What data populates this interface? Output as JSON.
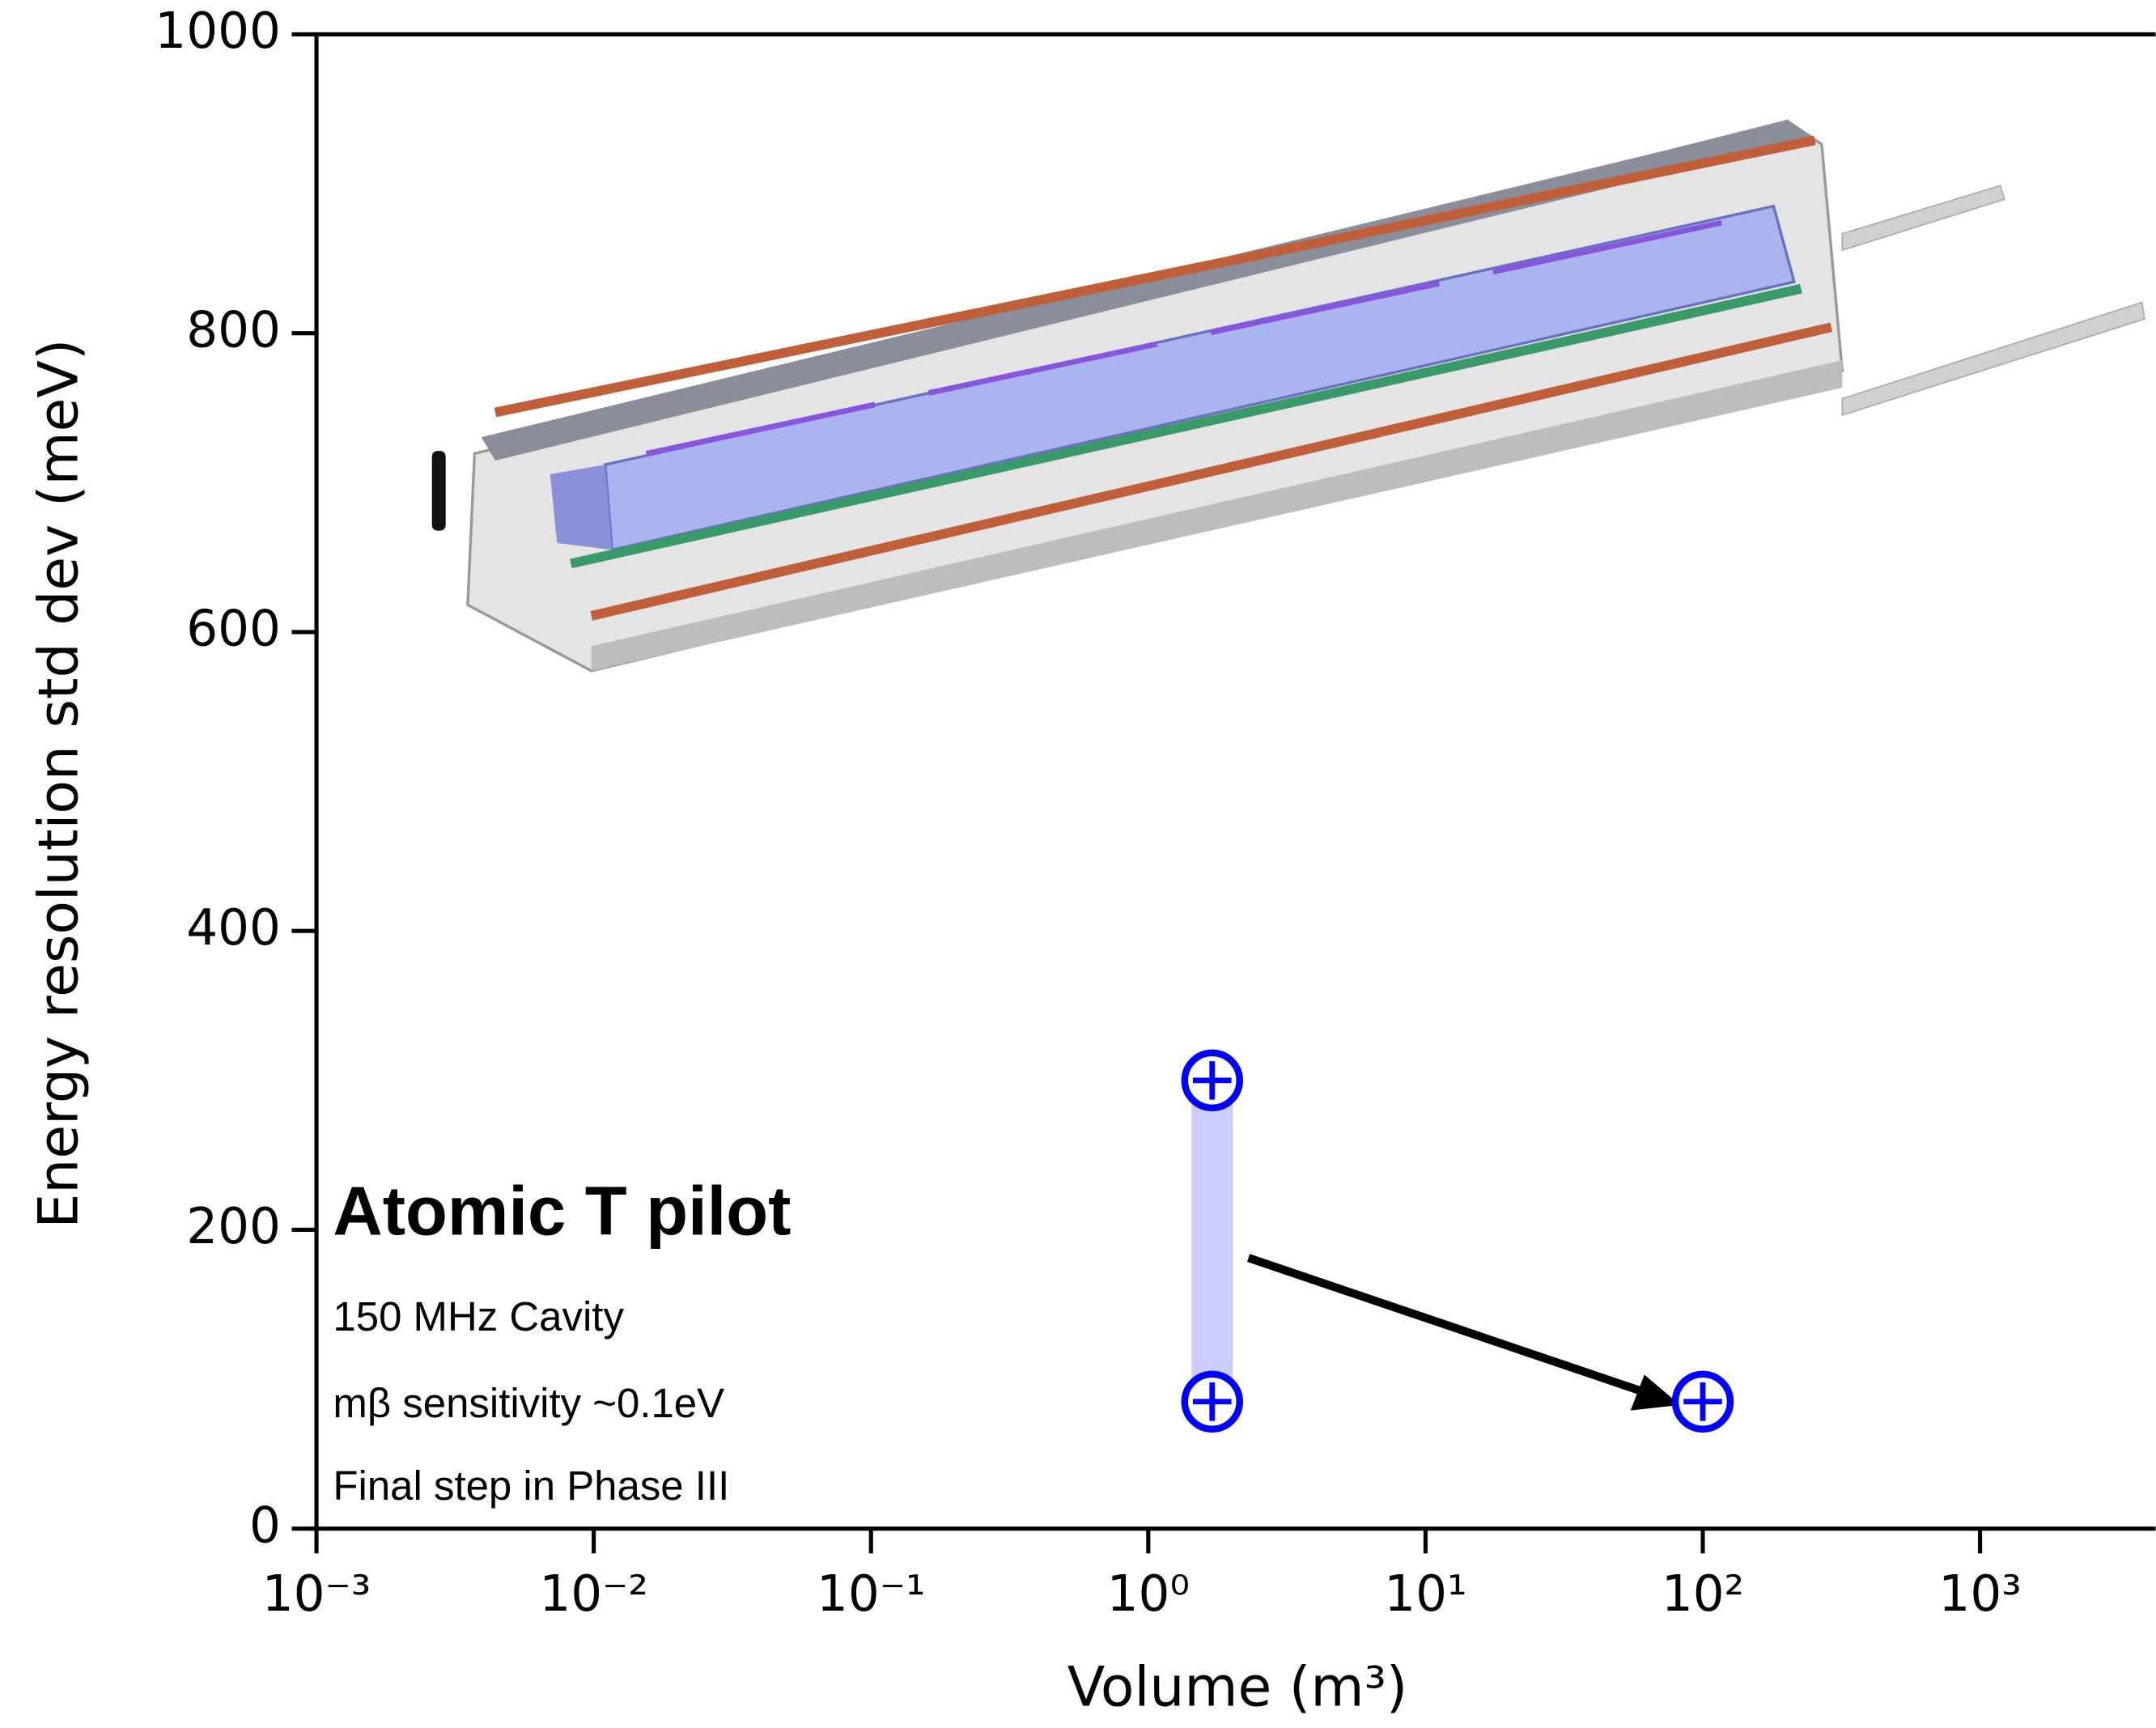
{
  "chart_data": {
    "type": "scatter",
    "xlabel": "Volume (m³)",
    "ylabel": "Energy resolution std dev (meV)",
    "xscale": "log",
    "xlim": [
      0.001,
      4300
    ],
    "ylim": [
      0,
      1000
    ],
    "xticks": [
      {
        "value": 0.001,
        "label": "10⁻³"
      },
      {
        "value": 0.01,
        "label": "10⁻²"
      },
      {
        "value": 0.1,
        "label": "10⁻¹"
      },
      {
        "value": 1,
        "label": "10⁰"
      },
      {
        "value": 10,
        "label": "10¹"
      },
      {
        "value": 100,
        "label": "10²"
      },
      {
        "value": 1000,
        "label": "10³"
      }
    ],
    "yticks": [
      0,
      200,
      400,
      600,
      800,
      1000
    ],
    "series": [
      {
        "color": "#0000ff",
        "x": [
          1.7,
          1.7,
          100
        ],
        "values": [
          300,
          85,
          85
        ]
      }
    ],
    "bands": [
      {
        "x": 1.7,
        "low": 85,
        "high": 300,
        "color": "#ccccff"
      }
    ],
    "annotations": [
      "Atomic T pilot",
      "150 MHz Cavity",
      "mβ sensitivity ~0.1eV",
      "Final step in Phase III"
    ]
  }
}
